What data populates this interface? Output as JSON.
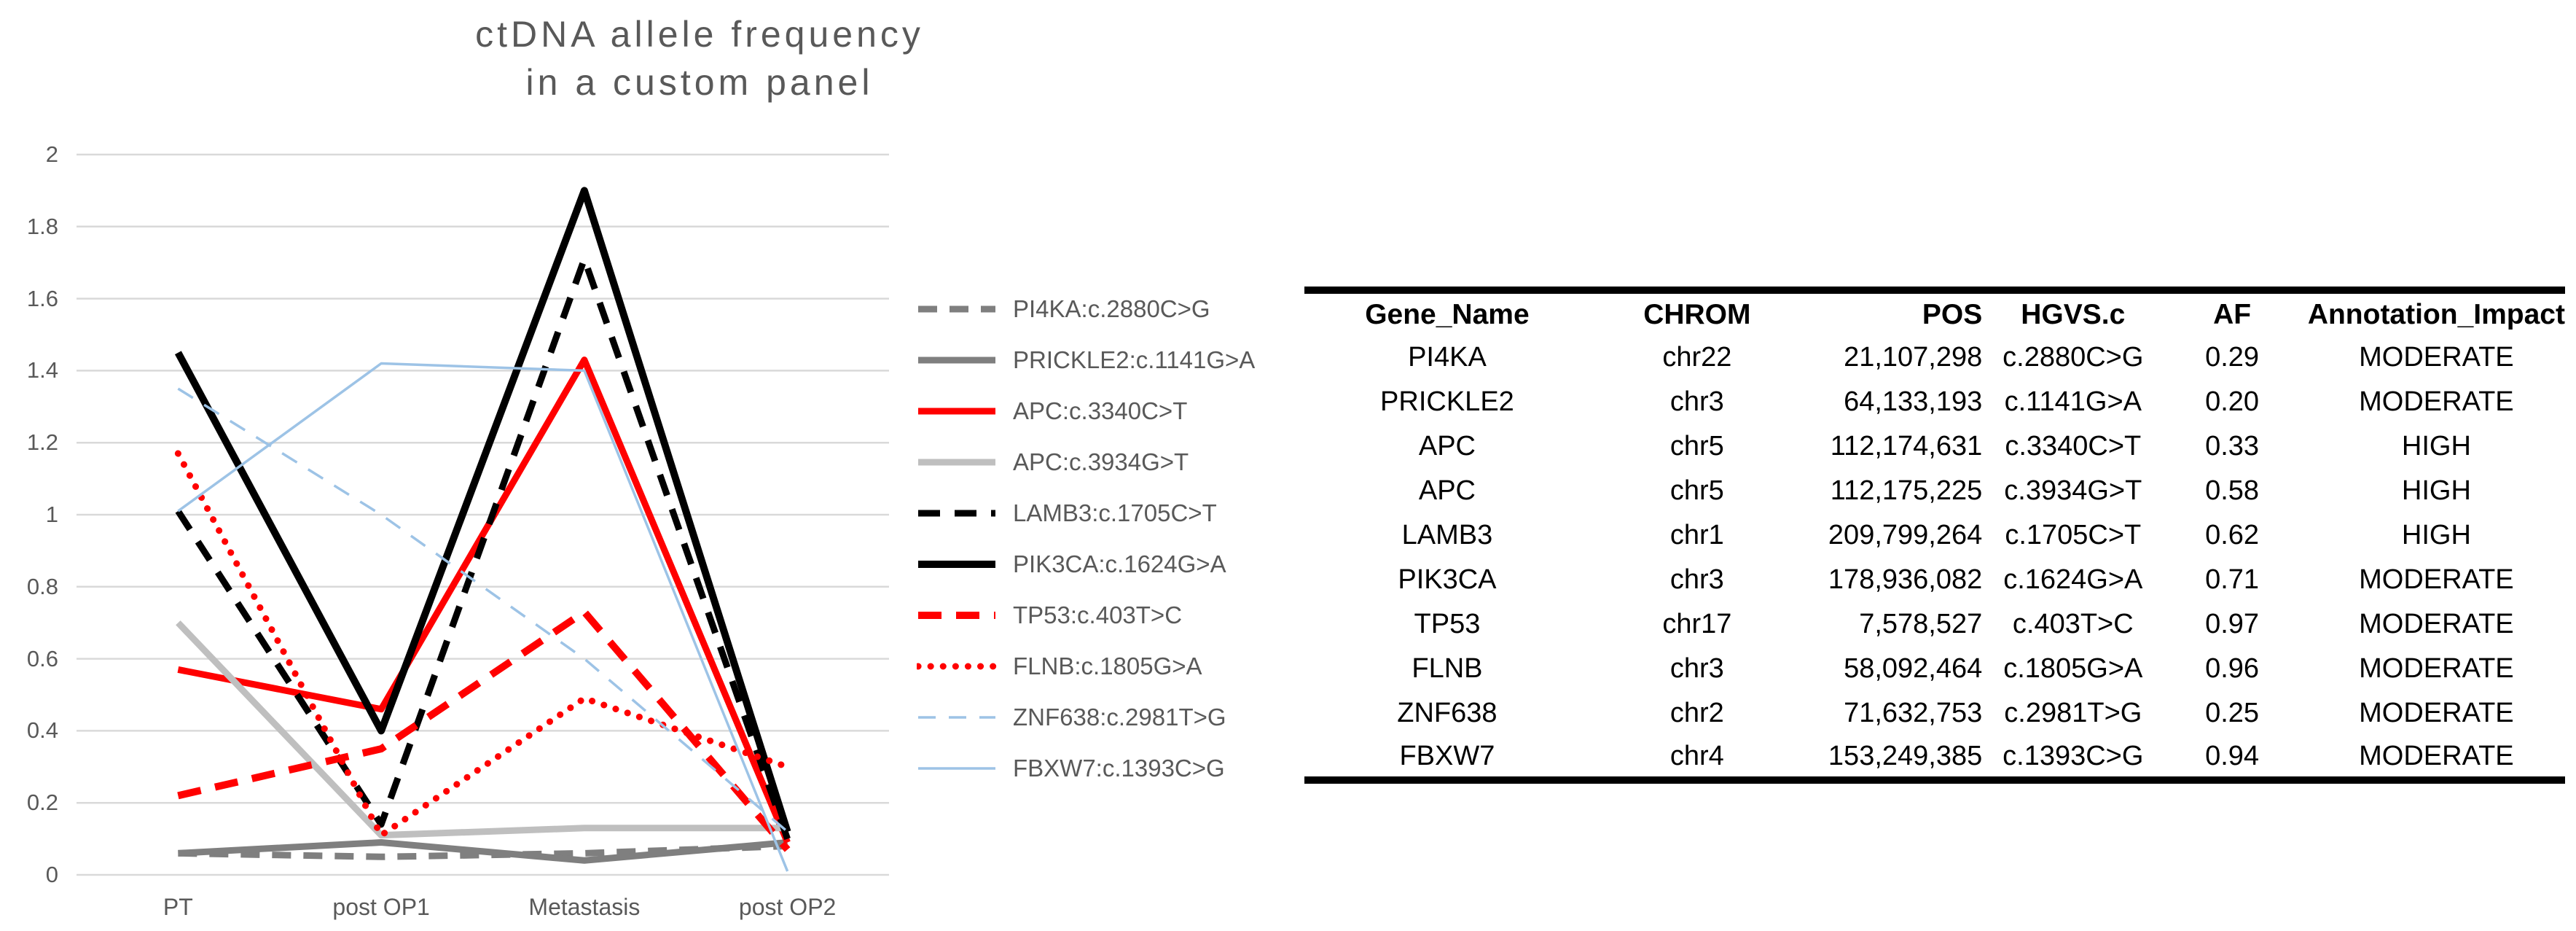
{
  "colors": {
    "title_text": "#595959",
    "axis_text": "#595959",
    "legend_text": "#595959",
    "gridline": "#D9D9D9",
    "table_text": "#000000",
    "red": "#FF0000",
    "black": "#000000",
    "gray": "#7F7F7F",
    "light_gray": "#BFBFBF",
    "light_blue": "#9DC3E6"
  },
  "chart_data": {
    "type": "line",
    "title": "ctDNA allele frequency in a custom panel",
    "title_lines": [
      "ctDNA allele frequency",
      "in a custom panel"
    ],
    "xlabel": "",
    "ylabel": "",
    "ylim": [
      0,
      2
    ],
    "grid": true,
    "legend_position": "right",
    "categories": [
      "PT",
      "post OP1",
      "Metastasis",
      "post OP2"
    ],
    "y_ticks": [
      "2",
      "1.8",
      "1.6",
      "1.4",
      "1.2",
      "1",
      "0.8",
      "0.6",
      "0.4",
      "0.2",
      "0"
    ],
    "series": [
      {
        "name": "PI4KA:c.2880C>G",
        "values": [
          0.06,
          0.05,
          0.06,
          0.08
        ],
        "color": "#7F7F7F",
        "width": 9,
        "dash": "26 17",
        "linecap": "butt"
      },
      {
        "name": "PRICKLE2:c.1141G>A",
        "values": [
          0.06,
          0.09,
          0.04,
          0.09
        ],
        "color": "#7F7F7F",
        "width": 9,
        "dash": null,
        "linecap": "butt"
      },
      {
        "name": "APC:c.3340C>T",
        "values": [
          0.57,
          0.46,
          1.43,
          0.09
        ],
        "color": "#FF0000",
        "width": 9,
        "dash": null,
        "linecap": "butt"
      },
      {
        "name": "APC:c.3934G>T",
        "values": [
          0.7,
          0.11,
          0.13,
          0.13
        ],
        "color": "#BFBFBF",
        "width": 9,
        "dash": null,
        "linecap": "butt"
      },
      {
        "name": "LAMB3:c.1705C>T",
        "values": [
          1.01,
          0.14,
          1.71,
          0.1
        ],
        "color": "#000000",
        "width": 9,
        "dash": "30 20",
        "linecap": "butt"
      },
      {
        "name": "PIK3CA:c.1624G>A",
        "values": [
          1.45,
          0.4,
          1.9,
          0.12
        ],
        "color": "#000000",
        "width": 10,
        "dash": null,
        "linecap": "butt"
      },
      {
        "name": "TP53:c.403T>C",
        "values": [
          0.22,
          0.35,
          0.73,
          0.07
        ],
        "color": "#FF0000",
        "width": 10,
        "dash": "32 20",
        "linecap": "butt"
      },
      {
        "name": "FLNB:c.1805G>A",
        "values": [
          1.17,
          0.11,
          0.49,
          0.3
        ],
        "color": "#FF0000",
        "width": 9,
        "dash": "0.1 17",
        "linecap": "round"
      },
      {
        "name": "ZNF638:c.2981T>G",
        "values": [
          1.35,
          1.0,
          0.6,
          0.12
        ],
        "color": "#9DC3E6",
        "width": 3.5,
        "dash": "24 18",
        "linecap": "butt"
      },
      {
        "name": "FBXW7:c.1393C>G",
        "values": [
          1.01,
          1.42,
          1.4,
          0.01
        ],
        "color": "#9DC3E6",
        "width": 3.5,
        "dash": null,
        "linecap": "butt"
      }
    ]
  },
  "table": {
    "columns": [
      "Gene_Name",
      "CHROM",
      "POS",
      "HGVS.c",
      "AF",
      "Annotation_Impact"
    ],
    "rows": [
      [
        "PI4KA",
        "chr22",
        "21,107,298",
        "c.2880C>G",
        "0.29",
        "MODERATE"
      ],
      [
        "PRICKLE2",
        "chr3",
        "64,133,193",
        "c.1141G>A",
        "0.20",
        "MODERATE"
      ],
      [
        "APC",
        "chr5",
        "112,174,631",
        "c.3340C>T",
        "0.33",
        "HIGH"
      ],
      [
        "APC",
        "chr5",
        "112,175,225",
        "c.3934G>T",
        "0.58",
        "HIGH"
      ],
      [
        "LAMB3",
        "chr1",
        "209,799,264",
        "c.1705C>T",
        "0.62",
        "HIGH"
      ],
      [
        "PIK3CA",
        "chr3",
        "178,936,082",
        "c.1624G>A",
        "0.71",
        "MODERATE"
      ],
      [
        "TP53",
        "chr17",
        "7,578,527",
        "c.403T>C",
        "0.97",
        "MODERATE"
      ],
      [
        "FLNB",
        "chr3",
        "58,092,464",
        "c.1805G>A",
        "0.96",
        "MODERATE"
      ],
      [
        "ZNF638",
        "chr2",
        "71,632,753",
        "c.2981T>G",
        "0.25",
        "MODERATE"
      ],
      [
        "FBXW7",
        "chr4",
        "153,249,385",
        "c.1393C>G",
        "0.94",
        "MODERATE"
      ]
    ]
  }
}
